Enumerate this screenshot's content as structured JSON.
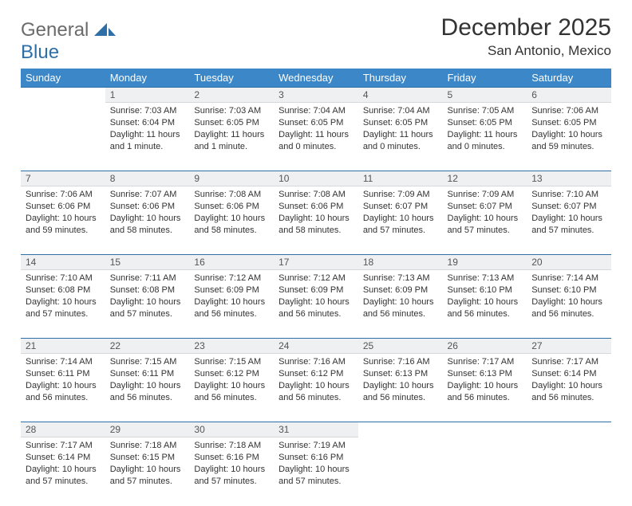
{
  "logo": {
    "general": "General",
    "blue": "Blue"
  },
  "title": "December 2025",
  "location": "San Antonio, Mexico",
  "weekday_headers": [
    "Sunday",
    "Monday",
    "Tuesday",
    "Wednesday",
    "Thursday",
    "Friday",
    "Saturday"
  ],
  "colors": {
    "header_bg": "#3b87c8",
    "header_text": "#ffffff",
    "daynum_bg": "#eef0f1",
    "daynum_border_top": "#2f6fa8",
    "logo_blue": "#2f6fa8",
    "logo_grey": "#6b6b6b",
    "text": "#333333",
    "background": "#ffffff"
  },
  "start_offset": 1,
  "days": [
    {
      "n": "1",
      "sr": "Sunrise: 7:03 AM",
      "ss": "Sunset: 6:04 PM",
      "dl1": "Daylight: 11 hours",
      "dl2": "and 1 minute."
    },
    {
      "n": "2",
      "sr": "Sunrise: 7:03 AM",
      "ss": "Sunset: 6:05 PM",
      "dl1": "Daylight: 11 hours",
      "dl2": "and 1 minute."
    },
    {
      "n": "3",
      "sr": "Sunrise: 7:04 AM",
      "ss": "Sunset: 6:05 PM",
      "dl1": "Daylight: 11 hours",
      "dl2": "and 0 minutes."
    },
    {
      "n": "4",
      "sr": "Sunrise: 7:04 AM",
      "ss": "Sunset: 6:05 PM",
      "dl1": "Daylight: 11 hours",
      "dl2": "and 0 minutes."
    },
    {
      "n": "5",
      "sr": "Sunrise: 7:05 AM",
      "ss": "Sunset: 6:05 PM",
      "dl1": "Daylight: 11 hours",
      "dl2": "and 0 minutes."
    },
    {
      "n": "6",
      "sr": "Sunrise: 7:06 AM",
      "ss": "Sunset: 6:05 PM",
      "dl1": "Daylight: 10 hours",
      "dl2": "and 59 minutes."
    },
    {
      "n": "7",
      "sr": "Sunrise: 7:06 AM",
      "ss": "Sunset: 6:06 PM",
      "dl1": "Daylight: 10 hours",
      "dl2": "and 59 minutes."
    },
    {
      "n": "8",
      "sr": "Sunrise: 7:07 AM",
      "ss": "Sunset: 6:06 PM",
      "dl1": "Daylight: 10 hours",
      "dl2": "and 58 minutes."
    },
    {
      "n": "9",
      "sr": "Sunrise: 7:08 AM",
      "ss": "Sunset: 6:06 PM",
      "dl1": "Daylight: 10 hours",
      "dl2": "and 58 minutes."
    },
    {
      "n": "10",
      "sr": "Sunrise: 7:08 AM",
      "ss": "Sunset: 6:06 PM",
      "dl1": "Daylight: 10 hours",
      "dl2": "and 58 minutes."
    },
    {
      "n": "11",
      "sr": "Sunrise: 7:09 AM",
      "ss": "Sunset: 6:07 PM",
      "dl1": "Daylight: 10 hours",
      "dl2": "and 57 minutes."
    },
    {
      "n": "12",
      "sr": "Sunrise: 7:09 AM",
      "ss": "Sunset: 6:07 PM",
      "dl1": "Daylight: 10 hours",
      "dl2": "and 57 minutes."
    },
    {
      "n": "13",
      "sr": "Sunrise: 7:10 AM",
      "ss": "Sunset: 6:07 PM",
      "dl1": "Daylight: 10 hours",
      "dl2": "and 57 minutes."
    },
    {
      "n": "14",
      "sr": "Sunrise: 7:10 AM",
      "ss": "Sunset: 6:08 PM",
      "dl1": "Daylight: 10 hours",
      "dl2": "and 57 minutes."
    },
    {
      "n": "15",
      "sr": "Sunrise: 7:11 AM",
      "ss": "Sunset: 6:08 PM",
      "dl1": "Daylight: 10 hours",
      "dl2": "and 57 minutes."
    },
    {
      "n": "16",
      "sr": "Sunrise: 7:12 AM",
      "ss": "Sunset: 6:09 PM",
      "dl1": "Daylight: 10 hours",
      "dl2": "and 56 minutes."
    },
    {
      "n": "17",
      "sr": "Sunrise: 7:12 AM",
      "ss": "Sunset: 6:09 PM",
      "dl1": "Daylight: 10 hours",
      "dl2": "and 56 minutes."
    },
    {
      "n": "18",
      "sr": "Sunrise: 7:13 AM",
      "ss": "Sunset: 6:09 PM",
      "dl1": "Daylight: 10 hours",
      "dl2": "and 56 minutes."
    },
    {
      "n": "19",
      "sr": "Sunrise: 7:13 AM",
      "ss": "Sunset: 6:10 PM",
      "dl1": "Daylight: 10 hours",
      "dl2": "and 56 minutes."
    },
    {
      "n": "20",
      "sr": "Sunrise: 7:14 AM",
      "ss": "Sunset: 6:10 PM",
      "dl1": "Daylight: 10 hours",
      "dl2": "and 56 minutes."
    },
    {
      "n": "21",
      "sr": "Sunrise: 7:14 AM",
      "ss": "Sunset: 6:11 PM",
      "dl1": "Daylight: 10 hours",
      "dl2": "and 56 minutes."
    },
    {
      "n": "22",
      "sr": "Sunrise: 7:15 AM",
      "ss": "Sunset: 6:11 PM",
      "dl1": "Daylight: 10 hours",
      "dl2": "and 56 minutes."
    },
    {
      "n": "23",
      "sr": "Sunrise: 7:15 AM",
      "ss": "Sunset: 6:12 PM",
      "dl1": "Daylight: 10 hours",
      "dl2": "and 56 minutes."
    },
    {
      "n": "24",
      "sr": "Sunrise: 7:16 AM",
      "ss": "Sunset: 6:12 PM",
      "dl1": "Daylight: 10 hours",
      "dl2": "and 56 minutes."
    },
    {
      "n": "25",
      "sr": "Sunrise: 7:16 AM",
      "ss": "Sunset: 6:13 PM",
      "dl1": "Daylight: 10 hours",
      "dl2": "and 56 minutes."
    },
    {
      "n": "26",
      "sr": "Sunrise: 7:17 AM",
      "ss": "Sunset: 6:13 PM",
      "dl1": "Daylight: 10 hours",
      "dl2": "and 56 minutes."
    },
    {
      "n": "27",
      "sr": "Sunrise: 7:17 AM",
      "ss": "Sunset: 6:14 PM",
      "dl1": "Daylight: 10 hours",
      "dl2": "and 56 minutes."
    },
    {
      "n": "28",
      "sr": "Sunrise: 7:17 AM",
      "ss": "Sunset: 6:14 PM",
      "dl1": "Daylight: 10 hours",
      "dl2": "and 57 minutes."
    },
    {
      "n": "29",
      "sr": "Sunrise: 7:18 AM",
      "ss": "Sunset: 6:15 PM",
      "dl1": "Daylight: 10 hours",
      "dl2": "and 57 minutes."
    },
    {
      "n": "30",
      "sr": "Sunrise: 7:18 AM",
      "ss": "Sunset: 6:16 PM",
      "dl1": "Daylight: 10 hours",
      "dl2": "and 57 minutes."
    },
    {
      "n": "31",
      "sr": "Sunrise: 7:19 AM",
      "ss": "Sunset: 6:16 PM",
      "dl1": "Daylight: 10 hours",
      "dl2": "and 57 minutes."
    }
  ]
}
